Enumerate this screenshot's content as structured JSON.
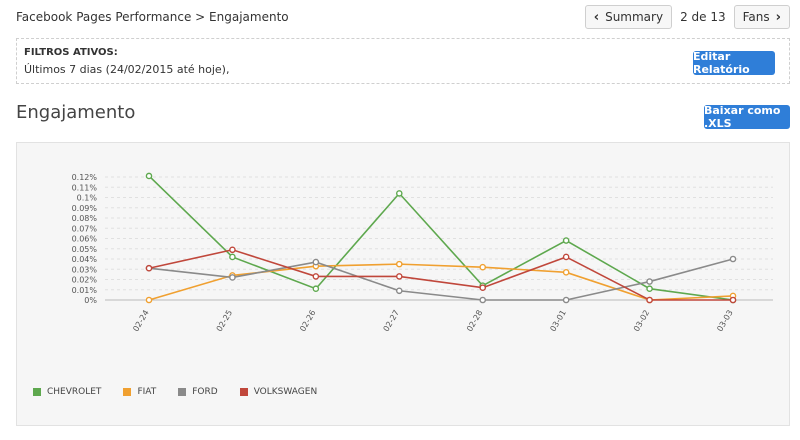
{
  "header": {
    "breadcrumb": "Facebook Pages Performance > Engajamento",
    "pager": {
      "prev_label": "Summary",
      "count": "2 de 13",
      "next_label": "Fans"
    }
  },
  "filters": {
    "title": "FILTROS ATIVOS:",
    "value": "Últimos 7 dias (24/02/2015 até hoje),",
    "edit_button": "Editar Relatório"
  },
  "section": {
    "title": "Engajamento",
    "download_button": "Baixar como .XLS"
  },
  "chart_data": {
    "type": "line",
    "categories": [
      "02-24",
      "02-25",
      "02-26",
      "02-27",
      "02-28",
      "03-01",
      "03-02",
      "03-03"
    ],
    "ylim": [
      0,
      0.12
    ],
    "yticks": [
      "0.12%",
      "0.11%",
      "0.1%",
      "0.09%",
      "0.08%",
      "0.07%",
      "0.06%",
      "0.05%",
      "0.04%",
      "0.03%",
      "0.02%",
      "0.01%",
      "0%"
    ],
    "grid": true,
    "legend_position": "bottom-left",
    "series": [
      {
        "name": "CHEVROLET",
        "color": "#5ea84e",
        "values": [
          0.121,
          0.042,
          0.011,
          0.104,
          0.014,
          0.058,
          0.011,
          0.0
        ]
      },
      {
        "name": "FIAT",
        "color": "#f0a030",
        "values": [
          0.0,
          0.024,
          0.033,
          0.035,
          0.032,
          0.027,
          0.0,
          0.004
        ]
      },
      {
        "name": "FORD",
        "color": "#8a8a8a",
        "values": [
          0.031,
          0.022,
          0.037,
          0.009,
          0.0,
          0.0,
          0.018,
          0.04
        ]
      },
      {
        "name": "VOLKSWAGEN",
        "color": "#c0473b",
        "values": [
          0.031,
          0.049,
          0.023,
          0.023,
          0.012,
          0.042,
          0.0,
          0.0
        ]
      }
    ]
  }
}
